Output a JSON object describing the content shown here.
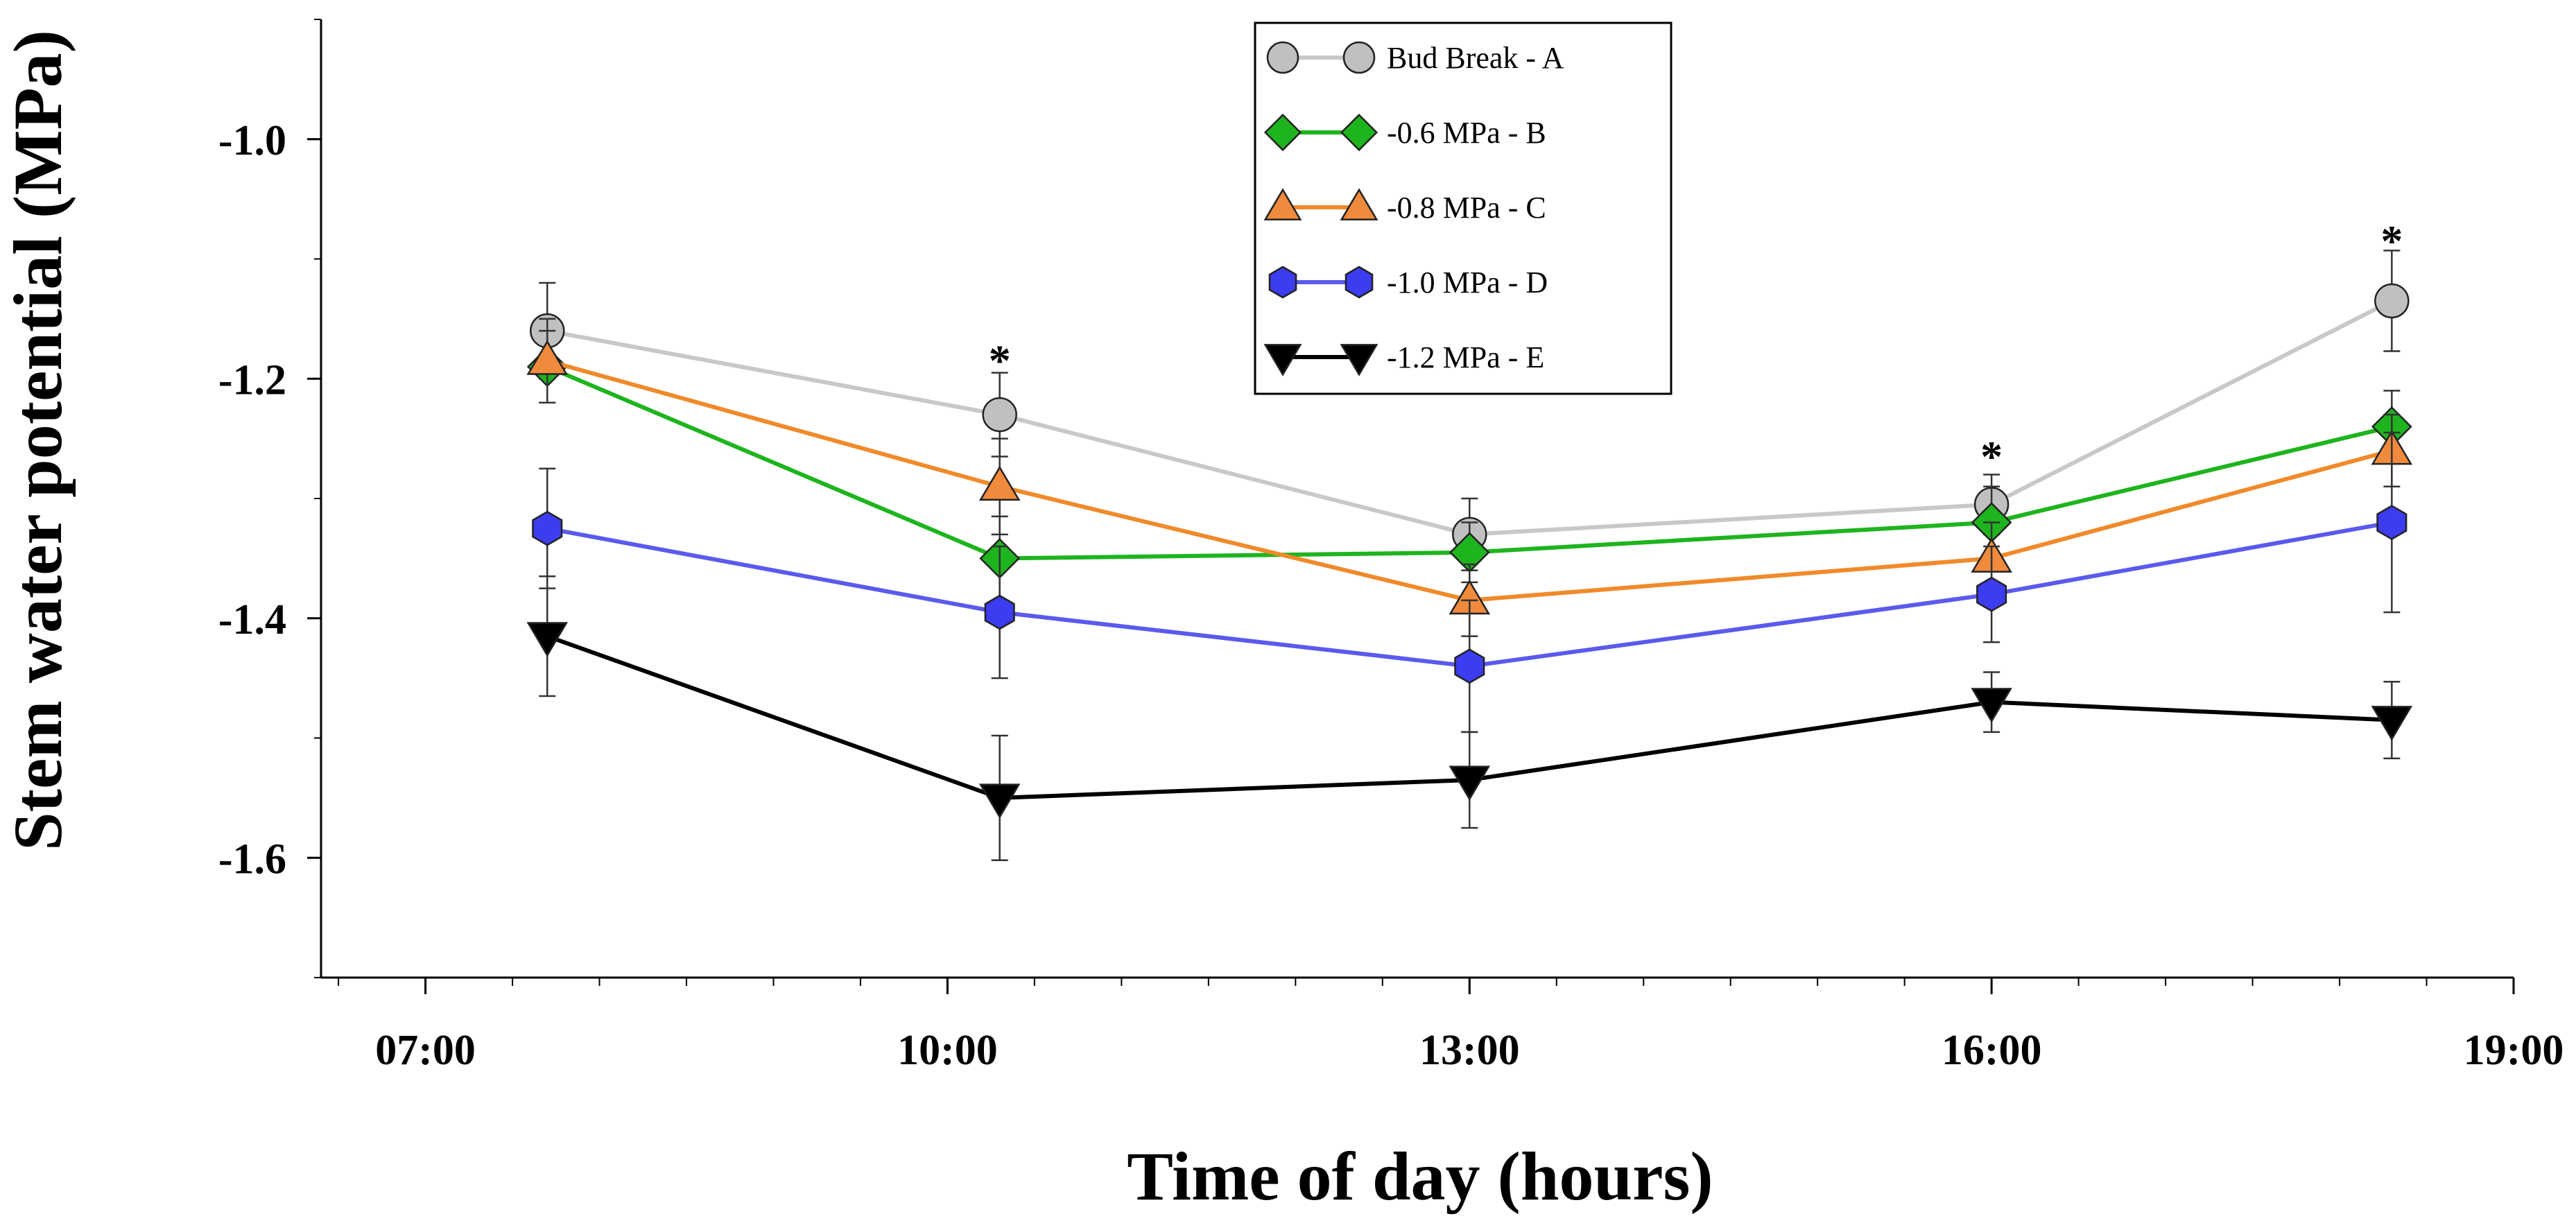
{
  "chart_data": {
    "type": "line",
    "xlabel": "Time of day (hours)",
    "ylabel": "Stem water potential (MPa)",
    "x_ticks": [
      7,
      10,
      13,
      16,
      19
    ],
    "x_tick_labels": [
      "07:00",
      "10:00",
      "13:00",
      "16:00",
      "19:00"
    ],
    "xlim": [
      6.4,
      19.0
    ],
    "y_ticks": [
      -1.0,
      -1.2,
      -1.4,
      -1.6
    ],
    "y_tick_labels": [
      "-1.0",
      "-1.2",
      "-1.4",
      "-1.6"
    ],
    "ylim": [
      -1.7,
      -0.9
    ],
    "grid": false,
    "legend_position": "top-center",
    "x": [
      7.7,
      10.3,
      13.0,
      16.0,
      18.3
    ],
    "series": [
      {
        "name": "Bud Break - A",
        "color": "#c0c0c0",
        "line_color": "#c8c8c8",
        "marker": "circle",
        "values": [
          -1.16,
          -1.23,
          -1.33,
          -1.305,
          -1.135
        ],
        "errors": [
          0.04,
          0.035,
          0.03,
          0.025,
          0.042
        ]
      },
      {
        "name": "-0.6 MPa - B",
        "color": "#1eb41e",
        "line_color": "#1eb41e",
        "marker": "diamond",
        "values": [
          -1.19,
          -1.35,
          -1.345,
          -1.32,
          -1.24
        ],
        "errors": [
          0.03,
          0.035,
          0.025,
          0.03,
          0.03
        ]
      },
      {
        "name": "-0.8 MPa - C",
        "color": "#f08a3c",
        "line_color": "#f08a2a",
        "marker": "triangle-up",
        "values": [
          -1.185,
          -1.29,
          -1.385,
          -1.35,
          -1.26
        ],
        "errors": [
          0.035,
          0.04,
          0.03,
          0.03,
          0.03
        ]
      },
      {
        "name": "-1.0 MPa - D",
        "color": "#3c3cf0",
        "line_color": "#5a5aee",
        "marker": "hexagon",
        "values": [
          -1.325,
          -1.395,
          -1.44,
          -1.38,
          -1.32
        ],
        "errors": [
          0.05,
          0.055,
          0.055,
          0.04,
          0.075
        ]
      },
      {
        "name": "-1.2 MPa - E",
        "color": "#000000",
        "line_color": "#000000",
        "marker": "triangle-down",
        "values": [
          -1.415,
          -1.55,
          -1.535,
          -1.47,
          -1.485
        ],
        "errors": [
          0.05,
          0.052,
          0.04,
          0.025,
          0.032
        ]
      }
    ],
    "annotations": [
      {
        "text": "*",
        "x": 10.3,
        "y": -1.18
      },
      {
        "text": "*",
        "x": 16.0,
        "y": -1.26
      },
      {
        "text": "*",
        "x": 18.3,
        "y": -1.08
      }
    ]
  }
}
